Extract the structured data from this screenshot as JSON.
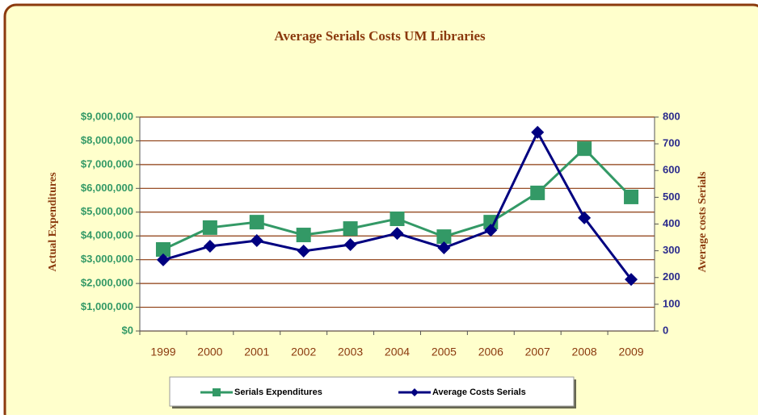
{
  "chart_data": {
    "type": "line",
    "title": "Average Serials Costs UM Libraries",
    "y_label": "Actual Expenditures",
    "y2_label": "Average costs Serials",
    "categories": [
      "1999",
      "2000",
      "2001",
      "2002",
      "2003",
      "2004",
      "2005",
      "2006",
      "2007",
      "2008",
      "2009"
    ],
    "series": [
      {
        "name": "Serials Expenditures",
        "color": "#339966",
        "marker": "square",
        "values": [
          3430000,
          4350000,
          4580000,
          4040000,
          4310000,
          4720000,
          3970000,
          4580000,
          5810000,
          7670000,
          5640000
        ]
      },
      {
        "name": "Average Costs Serials",
        "color": "#000080",
        "marker": "diamond",
        "axis": "y2",
        "values": [
          266,
          317,
          338,
          299,
          323,
          365,
          311,
          377,
          743,
          423,
          193
        ]
      }
    ],
    "ylim": [
      0,
      9000000
    ],
    "yticks": [
      {
        "value": 0,
        "label": "$0"
      },
      {
        "value": 1000000,
        "label": "$1,000,000"
      },
      {
        "value": 2000000,
        "label": "$2,000,000"
      },
      {
        "value": 3000000,
        "label": "$3,000,000"
      },
      {
        "value": 4000000,
        "label": "$4,000,000"
      },
      {
        "value": 5000000,
        "label": "$5,000,000"
      },
      {
        "value": 6000000,
        "label": "$6,000,000"
      },
      {
        "value": 7000000,
        "label": "$7,000,000"
      },
      {
        "value": 8000000,
        "label": "$8,000,000"
      },
      {
        "value": 9000000,
        "label": "$9,000,000"
      }
    ],
    "y2lim": [
      0,
      800
    ],
    "y2ticks": [
      0,
      100,
      200,
      300,
      400,
      500,
      600,
      700,
      800
    ],
    "grid": true,
    "legend": "bottom"
  }
}
